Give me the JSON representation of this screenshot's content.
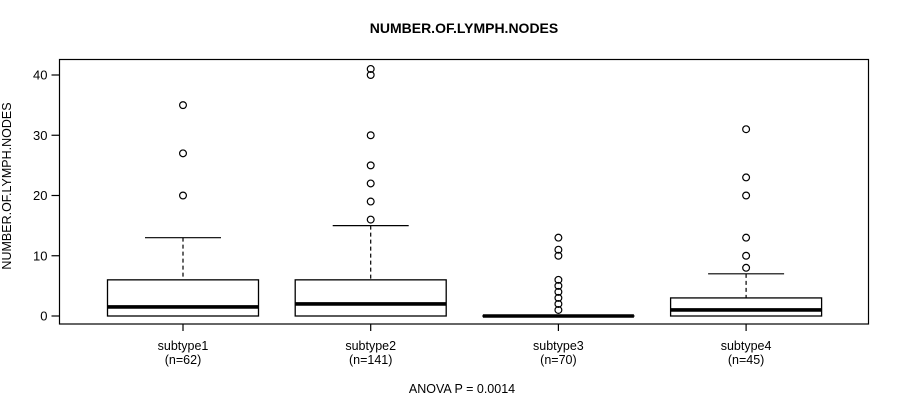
{
  "chart_data": {
    "type": "boxplot",
    "title": "NUMBER.OF.LYMPH.NODES",
    "ylabel": "NUMBER.OF.LYMPH.NODES",
    "annotation": "ANOVA P = 0.0014",
    "yticks": [
      0,
      10,
      20,
      30,
      40
    ],
    "ylim": [
      0,
      42
    ],
    "grid": false,
    "legend": null,
    "groups": [
      {
        "label": "subtype1",
        "n_label": "(n=62)",
        "n": 62,
        "q1": 0,
        "median": 1.5,
        "q3": 6,
        "whisker_low": 0,
        "whisker_high": 13,
        "outliers": [
          20,
          27,
          35
        ]
      },
      {
        "label": "subtype2",
        "n_label": "(n=141)",
        "n": 141,
        "q1": 0,
        "median": 2,
        "q3": 6,
        "whisker_low": 0,
        "whisker_high": 15,
        "outliers": [
          16,
          19,
          22,
          25,
          30,
          40,
          41
        ]
      },
      {
        "label": "subtype3",
        "n_label": "(n=70)",
        "n": 70,
        "q1": 0,
        "median": 0,
        "q3": 0,
        "whisker_low": 0,
        "whisker_high": 0,
        "outliers": [
          1,
          2,
          3,
          4,
          5,
          6,
          10,
          11,
          13
        ]
      },
      {
        "label": "subtype4",
        "n_label": "(n=45)",
        "n": 45,
        "q1": 0,
        "median": 1,
        "q3": 3,
        "whisker_low": 0,
        "whisker_high": 7,
        "outliers": [
          8,
          10,
          13,
          20,
          23,
          31
        ]
      }
    ],
    "colors": {
      "stroke": "#000000",
      "box_fill": "#ffffff",
      "background": "#ffffff"
    }
  }
}
